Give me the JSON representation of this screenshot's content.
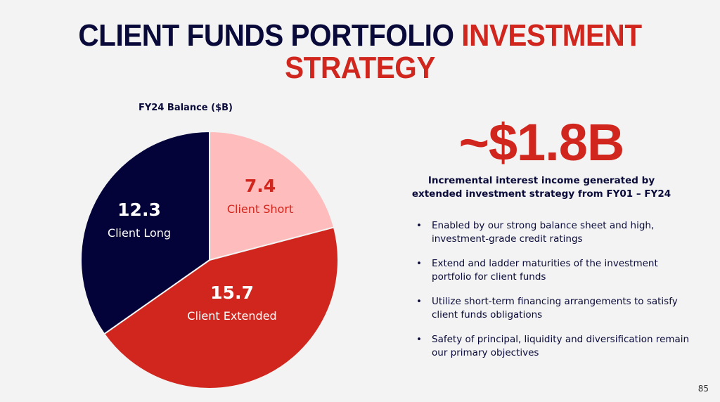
{
  "slide": {
    "title_part1": "CLIENT FUNDS PORTFOLIO",
    "title_part2": "INVESTMENT STRATEGY",
    "headline_value": "~$1.8B",
    "headline_caption": "Incremental interest income generated by extended investment strategy from FY01 – FY24",
    "bullets": [
      "Enabled by our strong balance sheet and high, investment-grade credit ratings",
      "Extend and ladder maturities of the investment portfolio for client funds",
      "Utilize short-term financing arrangements to satisfy client funds obligations",
      "Safety of principal, liquidity and diversification remain our primary objectives"
    ],
    "page_number": "85",
    "colors": {
      "navy": "#03033a",
      "red": "#d0261e",
      "pink": "#ffbcbc",
      "background": "#f2f3f2"
    }
  },
  "chart_data": {
    "type": "pie",
    "title": "FY24 Balance ($B)",
    "start": "12 o'clock, clockwise",
    "slices": [
      {
        "label": "Client Short",
        "value": 7.4,
        "value_label": "7.4",
        "color": "#ffbcbc",
        "text_color": "#d0261e"
      },
      {
        "label": "Client Extended",
        "value": 15.7,
        "value_label": "15.7",
        "color": "#d0261e",
        "text_color": "#ffffff"
      },
      {
        "label": "Client Long",
        "value": 12.3,
        "value_label": "12.3",
        "color": "#03033a",
        "text_color": "#ffffff"
      }
    ]
  }
}
